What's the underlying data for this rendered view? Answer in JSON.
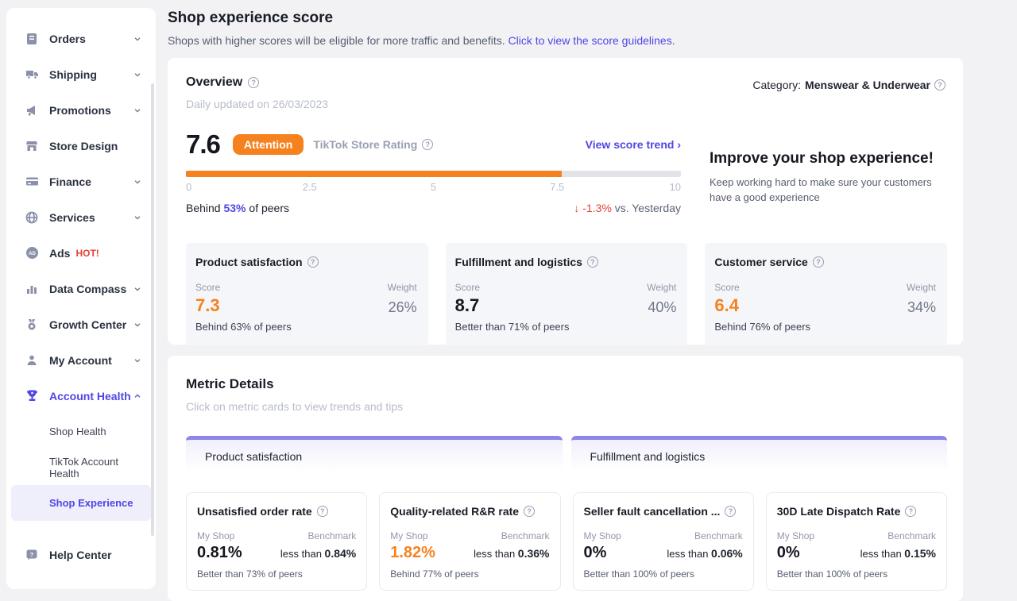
{
  "colors": {
    "accent": "#4f46e5",
    "orange": "#f5821f",
    "red": "#e6403a",
    "tab_bar": "#8c86e9"
  },
  "page": {
    "title": "Shop experience score",
    "subtitle": "Shops with higher scores will be eligible for more traffic and benefits. ",
    "subtitle_link": "Click to view the score guidelines."
  },
  "sidebar": {
    "items": [
      {
        "label": "Orders"
      },
      {
        "label": "Shipping"
      },
      {
        "label": "Promotions"
      },
      {
        "label": "Store Design"
      },
      {
        "label": "Finance"
      },
      {
        "label": "Services"
      },
      {
        "label": "Ads",
        "badge": "HOT!"
      },
      {
        "label": "Data Compass"
      },
      {
        "label": "Growth Center"
      },
      {
        "label": "My Account"
      },
      {
        "label": "Account Health"
      },
      {
        "label": "Shop Health"
      },
      {
        "label": "TikTok Account Health"
      },
      {
        "label": "Shop Experience"
      },
      {
        "label": "Help Center"
      }
    ]
  },
  "overview": {
    "title": "Overview",
    "updated": "Daily updated on 26/03/2023",
    "category_label": "Category:",
    "category_value": "Menswear & Underwear",
    "score": "7.6",
    "badge": "Attention",
    "rating_label": "TikTok Store Rating",
    "trend_link": "View score trend ›",
    "score_pct": 76,
    "scale": [
      "0",
      "2.5",
      "5",
      "7.5",
      "10"
    ],
    "peers_prefix": "Behind ",
    "peers_value": "53%",
    "peers_suffix": " of peers",
    "delta_arrow": "↓",
    "delta_value": "-1.3%",
    "delta_suffix": " vs. Yesterday",
    "improve_title": "Improve your shop experience!",
    "improve_body": "Keep working hard to make sure your customers have a good experience",
    "subscores": [
      {
        "title": "Product satisfaction",
        "score_label": "Score",
        "weight_label": "Weight",
        "score": "7.3",
        "weight": "26%",
        "peers": "Behind 63% of peers"
      },
      {
        "title": "Fulfillment and logistics",
        "score_label": "Score",
        "weight_label": "Weight",
        "score": "8.7",
        "weight": "40%",
        "peers": "Better than 71% of peers"
      },
      {
        "title": "Customer service",
        "score_label": "Score",
        "weight_label": "Weight",
        "score": "6.4",
        "weight": "34%",
        "peers": "Behind 76% of peers"
      }
    ]
  },
  "metric_details": {
    "title": "Metric Details",
    "subtitle": "Click on metric cards to view trends and tips",
    "tabs": [
      {
        "label": "Product satisfaction"
      },
      {
        "label": "Fulfillment and logistics"
      }
    ],
    "cards": [
      {
        "title": "Unsatisfied order rate",
        "my_shop_label": "My Shop",
        "benchmark_label": "Benchmark",
        "value": "0.81%",
        "benchmark_prefix": "less than ",
        "benchmark_value": "0.84%",
        "peers": "Better than 73% of peers"
      },
      {
        "title": "Quality-related R&R rate",
        "my_shop_label": "My Shop",
        "benchmark_label": "Benchmark",
        "value": "1.82%",
        "benchmark_prefix": "less than ",
        "benchmark_value": "0.36%",
        "peers": "Behind 77% of peers"
      },
      {
        "title": "Seller fault cancellation ...",
        "my_shop_label": "My Shop",
        "benchmark_label": "Benchmark",
        "value": "0%",
        "benchmark_prefix": "less than ",
        "benchmark_value": "0.06%",
        "peers": "Better than 100% of peers"
      },
      {
        "title": "30D Late Dispatch Rate",
        "my_shop_label": "My Shop",
        "benchmark_label": "Benchmark",
        "value": "0%",
        "benchmark_prefix": "less than ",
        "benchmark_value": "0.15%",
        "peers": "Better than 100% of peers"
      }
    ]
  }
}
